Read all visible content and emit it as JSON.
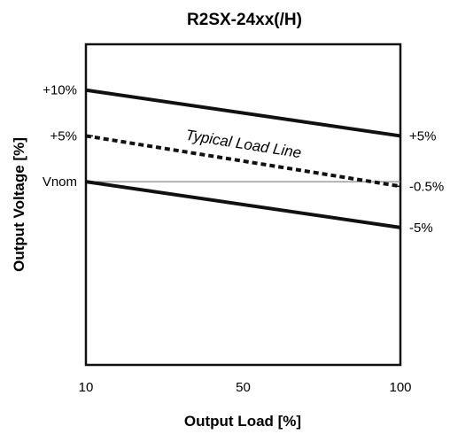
{
  "chart_data": {
    "type": "line",
    "title": "R2SX-24xx(/H)",
    "xlabel": "Output Load [%]",
    "ylabel": "Output Voltage [%]",
    "x_ticks": [
      "10",
      "50",
      "100"
    ],
    "y_ticks_left": [
      {
        "label": "+10%",
        "value": 10
      },
      {
        "label": "+5%",
        "value": 5
      },
      {
        "label": "Vnom",
        "value": 0
      }
    ],
    "y_ticks_right": [
      {
        "label": "+5%",
        "value": 5
      },
      {
        "label": "-0.5%",
        "value": -0.5
      },
      {
        "label": "-5%",
        "value": -5
      }
    ],
    "xlim": [
      10,
      100
    ],
    "ylim": [
      -20,
      15
    ],
    "series": [
      {
        "style": "solid",
        "x": [
          10,
          100
        ],
        "y": [
          10,
          5
        ],
        "color": "#111111"
      },
      {
        "style": "dotted",
        "x": [
          10,
          100
        ],
        "y": [
          5,
          -0.5
        ],
        "color": "#111111"
      },
      {
        "style": "solid",
        "x": [
          10,
          100
        ],
        "y": [
          0,
          -5
        ],
        "color": "#111111"
      }
    ],
    "reference_line": {
      "y": 0,
      "color": "#888888"
    },
    "annotations": [
      {
        "text": "Typical Load Line"
      }
    ],
    "grid": false
  }
}
